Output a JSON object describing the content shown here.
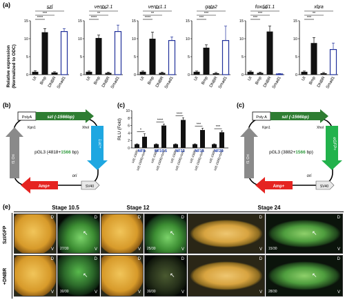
{
  "panels": {
    "a": "(a)",
    "b": "(b)",
    "c": "(c)",
    "c2": "(c)",
    "e": "(e)"
  },
  "chart_a": {
    "ylabel": [
      "Relative expression",
      "(Normalized to ODC)"
    ],
    "charts": [
      {
        "title": "szl",
        "ymax": 15,
        "ticks": [
          0,
          5,
          10,
          15
        ],
        "values": [
          0.8,
          11.8,
          0.6,
          12.0
        ],
        "errors": [
          0.3,
          1.0,
          0.2,
          0.8
        ],
        "sig": [
          "****",
          "***",
          "****"
        ]
      },
      {
        "title": "ventx2.1",
        "ymax": 15,
        "ticks": [
          0,
          5,
          10,
          15
        ],
        "values": [
          0.8,
          10.2,
          0.5,
          12.0
        ],
        "errors": [
          0.2,
          0.8,
          0.2,
          1.8
        ],
        "sig": [
          "****",
          "**",
          "****"
        ]
      },
      {
        "title": "ventx1.1",
        "ymax": 15,
        "ticks": [
          0,
          5,
          10,
          15
        ],
        "values": [
          0.8,
          10.0,
          0.5,
          9.5
        ],
        "errors": [
          0.2,
          1.8,
          0.2,
          1.0
        ],
        "sig": [
          "****",
          "**",
          "***"
        ]
      },
      {
        "title": "gata2",
        "ymax": 15,
        "ticks": [
          0,
          5,
          10,
          15
        ],
        "values": [
          0.8,
          7.5,
          0.4,
          9.5
        ],
        "errors": [
          0.2,
          0.8,
          0.2,
          4.0
        ],
        "sig": [
          "***",
          "***",
          "***"
        ]
      },
      {
        "title": "foxd4l1.1",
        "ymax": 15,
        "ticks": [
          0,
          5,
          10,
          15
        ],
        "values": [
          0.8,
          0.5,
          12.0,
          0.2
        ],
        "errors": [
          0.2,
          0.2,
          1.5,
          0.1
        ],
        "sig": [
          "***",
          "***",
          "***"
        ]
      },
      {
        "title": "xbra",
        "ymax": 15,
        "ticks": [
          0,
          5,
          10,
          15
        ],
        "values": [
          0.8,
          8.8,
          0.4,
          7.0
        ],
        "errors": [
          0.2,
          1.5,
          0.2,
          1.8
        ],
        "sig": [
          "***",
          "**",
          "*"
        ]
      }
    ],
    "categories": [
      "UI",
      "Bmp",
      "DNBR",
      "Smad1"
    ]
  },
  "chart_c": {
    "ylabel": "RLU (Fold)",
    "ymax": 10,
    "ticks": [
      0,
      2,
      4,
      6,
      8,
      10
    ],
    "groups": [
      {
        "label": "NF9",
        "values": [
          1.0,
          3.0
        ],
        "errors": [
          0.1,
          0.8
        ],
        "sig": "*"
      },
      {
        "label": "NF10.5",
        "values": [
          1.0,
          6.0
        ],
        "errors": [
          0.1,
          0.4
        ],
        "sig": "****"
      },
      {
        "label": "NF12",
        "values": [
          1.0,
          7.5
        ],
        "errors": [
          0.1,
          0.6
        ],
        "sig": "****"
      },
      {
        "label": "NF15",
        "values": [
          1.0,
          4.8
        ],
        "errors": [
          0.1,
          0.5
        ],
        "sig": "***"
      },
      {
        "label": "NF20",
        "values": [
          1.0,
          4.2
        ],
        "errors": [
          0.1,
          0.4
        ],
        "sig": "***"
      }
    ],
    "xlabels": [
      "szl(-1566)",
      "szl(-1566)+bmp",
      "szl(-1566)",
      "szl(-1566)+bmp",
      "szl(-1566)",
      "szl(-1566)+bmp",
      "szl(-1566)",
      "szl(-1566)+bmp",
      "szl(-1566)",
      "szl(-1566)+bmp"
    ]
  },
  "plasmid_b": {
    "polyA": "PolyA",
    "insert": "szl (-1566bp)",
    "kpn": "Kpn1",
    "xho": "Xhol",
    "center_a": "pGL3 (4818+",
    "center_b": "1566",
    "center_c": " bp)",
    "ori": "ori",
    "amp": "Amp+",
    "sv": "SV40",
    "f1": "f1 Ori",
    "reporter": "Luc+"
  },
  "plasmid_c": {
    "polyA": "Poly A",
    "insert": "szl (-1566bp)",
    "kpn": "Kpn1",
    "xho": "Xhol",
    "center_a": "pGL3 (3882+",
    "center_b": "1566",
    "center_c": " bp)",
    "ori": "ori",
    "amp": "Amp+",
    "sv": "SV40",
    "f1": "f1 Ori",
    "reporter": "eGFP+"
  },
  "panel_e": {
    "stages": [
      "Stage 10.5",
      "Stage 12",
      "Stage 24"
    ],
    "rows": [
      "Szl/GFP",
      "+DNBR"
    ],
    "d": "D",
    "v": "V",
    "counts": [
      "27/30",
      "25/30",
      "15/30",
      "30/30",
      "30/30",
      "28/30"
    ]
  },
  "colors": {
    "green_arrow": "#2e7d32",
    "blue_arrow": "#1ea7e1",
    "red_arrow": "#e52421",
    "gray_arrow": "#8a8a8a",
    "egfp_arrow": "#22b24c",
    "bar": "#111111",
    "smad_bar": "#1f2f9a"
  }
}
